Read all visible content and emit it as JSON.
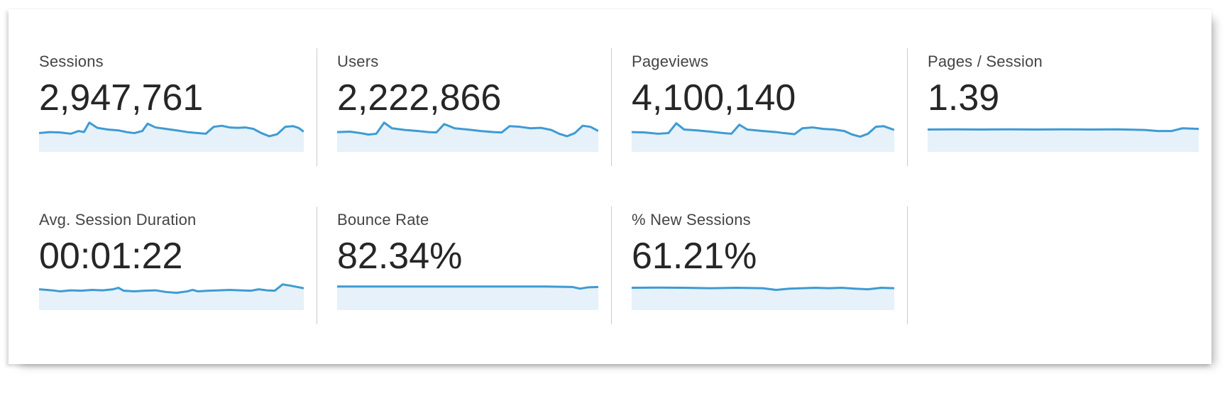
{
  "colors": {
    "spark_line": "#3e9bd3",
    "spark_fill": "#e6f1f9",
    "label_text": "#444444",
    "value_text": "#262626",
    "divider": "#cccccc"
  },
  "cards": [
    {
      "label": "Sessions",
      "value": "2,947,761"
    },
    {
      "label": "Users",
      "value": "2,222,866"
    },
    {
      "label": "Pageviews",
      "value": "4,100,140"
    },
    {
      "label": "Pages / Session",
      "value": "1.39"
    },
    {
      "label": "Avg. Session Duration",
      "value": "00:01:22"
    },
    {
      "label": "Bounce Rate",
      "value": "82.34%"
    },
    {
      "label": "% New Sessions",
      "value": "61.21%"
    }
  ],
  "chart_data": [
    {
      "type": "area",
      "title": "Sessions",
      "current_value": "2,947,761",
      "axes_visible": false,
      "grid": false,
      "legend": false,
      "points": [
        [
          0,
          0.45
        ],
        [
          4,
          0.5
        ],
        [
          8,
          0.48
        ],
        [
          12,
          0.42
        ],
        [
          15,
          0.55
        ],
        [
          17,
          0.5
        ],
        [
          19,
          0.95
        ],
        [
          22,
          0.7
        ],
        [
          26,
          0.62
        ],
        [
          30,
          0.58
        ],
        [
          33,
          0.5
        ],
        [
          36,
          0.45
        ],
        [
          39,
          0.55
        ],
        [
          41,
          0.9
        ],
        [
          44,
          0.72
        ],
        [
          48,
          0.65
        ],
        [
          52,
          0.58
        ],
        [
          56,
          0.5
        ],
        [
          60,
          0.45
        ],
        [
          63,
          0.42
        ],
        [
          66,
          0.75
        ],
        [
          69,
          0.8
        ],
        [
          72,
          0.72
        ],
        [
          75,
          0.7
        ],
        [
          78,
          0.72
        ],
        [
          81,
          0.65
        ],
        [
          84,
          0.45
        ],
        [
          87,
          0.3
        ],
        [
          90,
          0.4
        ],
        [
          93,
          0.75
        ],
        [
          96,
          0.78
        ],
        [
          98,
          0.7
        ],
        [
          100,
          0.52
        ]
      ]
    },
    {
      "type": "area",
      "title": "Users",
      "current_value": "2,222,866",
      "axes_visible": false,
      "grid": false,
      "legend": false,
      "points": [
        [
          0,
          0.5
        ],
        [
          5,
          0.52
        ],
        [
          9,
          0.45
        ],
        [
          12,
          0.38
        ],
        [
          15,
          0.42
        ],
        [
          18,
          0.95
        ],
        [
          21,
          0.68
        ],
        [
          26,
          0.6
        ],
        [
          31,
          0.55
        ],
        [
          35,
          0.5
        ],
        [
          38,
          0.48
        ],
        [
          41,
          0.88
        ],
        [
          45,
          0.68
        ],
        [
          50,
          0.62
        ],
        [
          55,
          0.55
        ],
        [
          60,
          0.5
        ],
        [
          63,
          0.48
        ],
        [
          66,
          0.78
        ],
        [
          70,
          0.75
        ],
        [
          74,
          0.68
        ],
        [
          78,
          0.7
        ],
        [
          82,
          0.6
        ],
        [
          85,
          0.42
        ],
        [
          88,
          0.3
        ],
        [
          91,
          0.45
        ],
        [
          94,
          0.8
        ],
        [
          97,
          0.75
        ],
        [
          100,
          0.55
        ]
      ]
    },
    {
      "type": "area",
      "title": "Pageviews",
      "current_value": "4,100,140",
      "axes_visible": false,
      "grid": false,
      "legend": false,
      "points": [
        [
          0,
          0.5
        ],
        [
          5,
          0.48
        ],
        [
          10,
          0.42
        ],
        [
          14,
          0.45
        ],
        [
          17,
          0.92
        ],
        [
          20,
          0.62
        ],
        [
          25,
          0.58
        ],
        [
          30,
          0.52
        ],
        [
          35,
          0.45
        ],
        [
          38,
          0.42
        ],
        [
          41,
          0.85
        ],
        [
          44,
          0.62
        ],
        [
          50,
          0.55
        ],
        [
          55,
          0.5
        ],
        [
          58,
          0.45
        ],
        [
          62,
          0.4
        ],
        [
          65,
          0.68
        ],
        [
          69,
          0.72
        ],
        [
          73,
          0.65
        ],
        [
          77,
          0.62
        ],
        [
          81,
          0.55
        ],
        [
          84,
          0.38
        ],
        [
          87,
          0.28
        ],
        [
          90,
          0.42
        ],
        [
          93,
          0.75
        ],
        [
          96,
          0.78
        ],
        [
          100,
          0.6
        ]
      ]
    },
    {
      "type": "area",
      "title": "Pages / Session",
      "current_value": "1.39",
      "axes_visible": false,
      "grid": false,
      "legend": false,
      "points": [
        [
          0,
          0.62
        ],
        [
          10,
          0.63
        ],
        [
          20,
          0.62
        ],
        [
          30,
          0.63
        ],
        [
          40,
          0.62
        ],
        [
          50,
          0.63
        ],
        [
          60,
          0.62
        ],
        [
          70,
          0.63
        ],
        [
          80,
          0.6
        ],
        [
          85,
          0.55
        ],
        [
          90,
          0.55
        ],
        [
          94,
          0.68
        ],
        [
          100,
          0.65
        ]
      ]
    },
    {
      "type": "area",
      "title": "Avg. Session Duration",
      "current_value": "00:01:22",
      "axes_visible": false,
      "grid": false,
      "legend": false,
      "points": [
        [
          0,
          0.55
        ],
        [
          5,
          0.5
        ],
        [
          8,
          0.45
        ],
        [
          12,
          0.5
        ],
        [
          16,
          0.48
        ],
        [
          20,
          0.52
        ],
        [
          24,
          0.5
        ],
        [
          28,
          0.55
        ],
        [
          30,
          0.62
        ],
        [
          32,
          0.48
        ],
        [
          36,
          0.45
        ],
        [
          40,
          0.48
        ],
        [
          44,
          0.5
        ],
        [
          48,
          0.42
        ],
        [
          52,
          0.38
        ],
        [
          56,
          0.45
        ],
        [
          58,
          0.52
        ],
        [
          60,
          0.45
        ],
        [
          64,
          0.48
        ],
        [
          68,
          0.5
        ],
        [
          72,
          0.52
        ],
        [
          76,
          0.5
        ],
        [
          80,
          0.48
        ],
        [
          83,
          0.55
        ],
        [
          86,
          0.5
        ],
        [
          89,
          0.48
        ],
        [
          92,
          0.78
        ],
        [
          95,
          0.72
        ],
        [
          100,
          0.6
        ]
      ]
    },
    {
      "type": "area",
      "title": "Bounce Rate",
      "current_value": "82.34%",
      "axes_visible": false,
      "grid": false,
      "legend": false,
      "points": [
        [
          0,
          0.68
        ],
        [
          20,
          0.68
        ],
        [
          40,
          0.68
        ],
        [
          60,
          0.68
        ],
        [
          80,
          0.68
        ],
        [
          90,
          0.66
        ],
        [
          93,
          0.58
        ],
        [
          96,
          0.64
        ],
        [
          100,
          0.66
        ]
      ]
    },
    {
      "type": "area",
      "title": "% New Sessions",
      "current_value": "61.21%",
      "axes_visible": false,
      "grid": false,
      "legend": false,
      "points": [
        [
          0,
          0.62
        ],
        [
          10,
          0.63
        ],
        [
          20,
          0.62
        ],
        [
          30,
          0.6
        ],
        [
          40,
          0.62
        ],
        [
          50,
          0.6
        ],
        [
          55,
          0.52
        ],
        [
          60,
          0.58
        ],
        [
          65,
          0.6
        ],
        [
          70,
          0.62
        ],
        [
          75,
          0.6
        ],
        [
          80,
          0.62
        ],
        [
          85,
          0.58
        ],
        [
          90,
          0.55
        ],
        [
          95,
          0.62
        ],
        [
          100,
          0.6
        ]
      ]
    }
  ]
}
